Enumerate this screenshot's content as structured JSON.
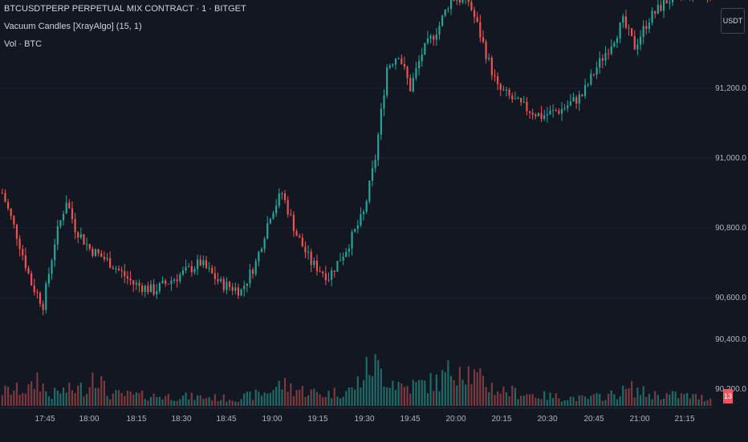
{
  "legend": {
    "symbol_line": "BTCUSDTPERP PERPETUAL MIX CONTRACT · 1 · BITGET",
    "indicator_line": "Vacuum Candles [XrayAlgo] (15, 1)",
    "volume_line": "Vol · BTC"
  },
  "currency_button": "USDT",
  "last_volume_badge": "13",
  "price_axis": {
    "labels": [
      "91,200.0",
      "91,000.0",
      "90,800.0",
      "90,600.0",
      "90,400.0",
      "90,200.0"
    ]
  },
  "time_axis": {
    "labels": [
      "17:45",
      "18:00",
      "18:15",
      "18:30",
      "18:45",
      "19:00",
      "19:15",
      "19:30",
      "19:45",
      "20:00",
      "20:15",
      "20:30",
      "20:45",
      "21:00",
      "21:15"
    ]
  },
  "colors": {
    "up": "#26a69a",
    "down": "#ef5350",
    "volume_up": "#1f6b67",
    "volume_down": "#7d3a3d",
    "background": "#131722"
  },
  "chart_data": {
    "type": "candlestick",
    "price_range": [
      90200,
      91380
    ],
    "price_path_anchors": [
      [
        0,
        90900
      ],
      [
        5,
        90780
      ],
      [
        10,
        90640
      ],
      [
        14,
        90580
      ],
      [
        18,
        90760
      ],
      [
        22,
        90880
      ],
      [
        25,
        90800
      ],
      [
        30,
        90740
      ],
      [
        37,
        90700
      ],
      [
        45,
        90640
      ],
      [
        52,
        90620
      ],
      [
        60,
        90660
      ],
      [
        68,
        90700
      ],
      [
        75,
        90640
      ],
      [
        82,
        90620
      ],
      [
        87,
        90700
      ],
      [
        92,
        90840
      ],
      [
        96,
        90900
      ],
      [
        101,
        90780
      ],
      [
        106,
        90700
      ],
      [
        112,
        90660
      ],
      [
        118,
        90740
      ],
      [
        124,
        90840
      ],
      [
        128,
        91000
      ],
      [
        132,
        91260
      ],
      [
        136,
        91300
      ],
      [
        140,
        91200
      ],
      [
        144,
        91300
      ],
      [
        150,
        91380
      ],
      [
        154,
        91460
      ],
      [
        160,
        91450
      ],
      [
        163,
        91380
      ],
      [
        166,
        91300
      ],
      [
        170,
        91200
      ],
      [
        178,
        91150
      ],
      [
        185,
        91120
      ],
      [
        192,
        91140
      ],
      [
        199,
        91180
      ],
      [
        204,
        91260
      ],
      [
        209,
        91330
      ],
      [
        213,
        91390
      ],
      [
        217,
        91320
      ],
      [
        222,
        91400
      ],
      [
        228,
        91450
      ],
      [
        236,
        91480
      ],
      [
        243,
        91470
      ]
    ],
    "volume_path_anchors": [
      [
        0,
        20
      ],
      [
        10,
        24
      ],
      [
        12,
        40
      ],
      [
        16,
        14
      ],
      [
        20,
        20
      ],
      [
        30,
        26
      ],
      [
        31,
        58
      ],
      [
        36,
        16
      ],
      [
        50,
        14
      ],
      [
        70,
        12
      ],
      [
        80,
        10
      ],
      [
        90,
        18
      ],
      [
        96,
        30
      ],
      [
        100,
        24
      ],
      [
        110,
        16
      ],
      [
        120,
        22
      ],
      [
        127,
        58
      ],
      [
        132,
        40
      ],
      [
        138,
        26
      ],
      [
        150,
        34
      ],
      [
        157,
        60
      ],
      [
        162,
        40
      ],
      [
        170,
        22
      ],
      [
        185,
        14
      ],
      [
        200,
        10
      ],
      [
        210,
        16
      ],
      [
        216,
        24
      ],
      [
        222,
        16
      ],
      [
        235,
        14
      ],
      [
        243,
        10
      ]
    ]
  }
}
